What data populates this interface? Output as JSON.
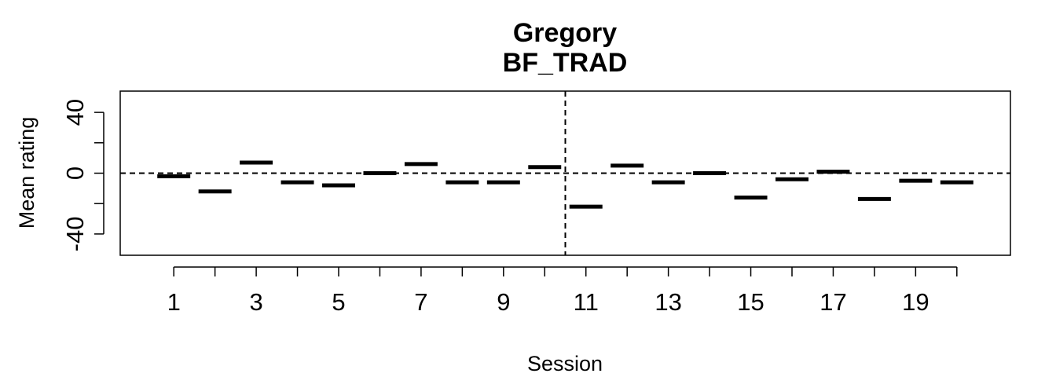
{
  "chart_data": {
    "type": "line",
    "title": "Gregory",
    "subtitle": "BF_TRAD",
    "xlabel": "Session",
    "ylabel": "Mean rating",
    "x": [
      1,
      2,
      3,
      4,
      5,
      6,
      7,
      8,
      9,
      10,
      11,
      12,
      13,
      14,
      15,
      16,
      17,
      18,
      19,
      20
    ],
    "values": [
      -2,
      -12,
      7,
      -6,
      -8,
      0,
      6,
      -6,
      -6,
      4,
      -22,
      5,
      -6,
      0,
      -16,
      -4,
      1,
      -17,
      -5,
      -6
    ],
    "xticks_labeled": [
      "1",
      "3",
      "5",
      "7",
      "9",
      "11",
      "13",
      "15",
      "17",
      "19"
    ],
    "yticks_labeled": [
      "-40",
      "0",
      "40"
    ],
    "ylim": [
      -54,
      54
    ],
    "xlim": [
      -0.3,
      21.3
    ],
    "reference_hline": 0,
    "reference_vline": 10.5,
    "grid": false
  }
}
